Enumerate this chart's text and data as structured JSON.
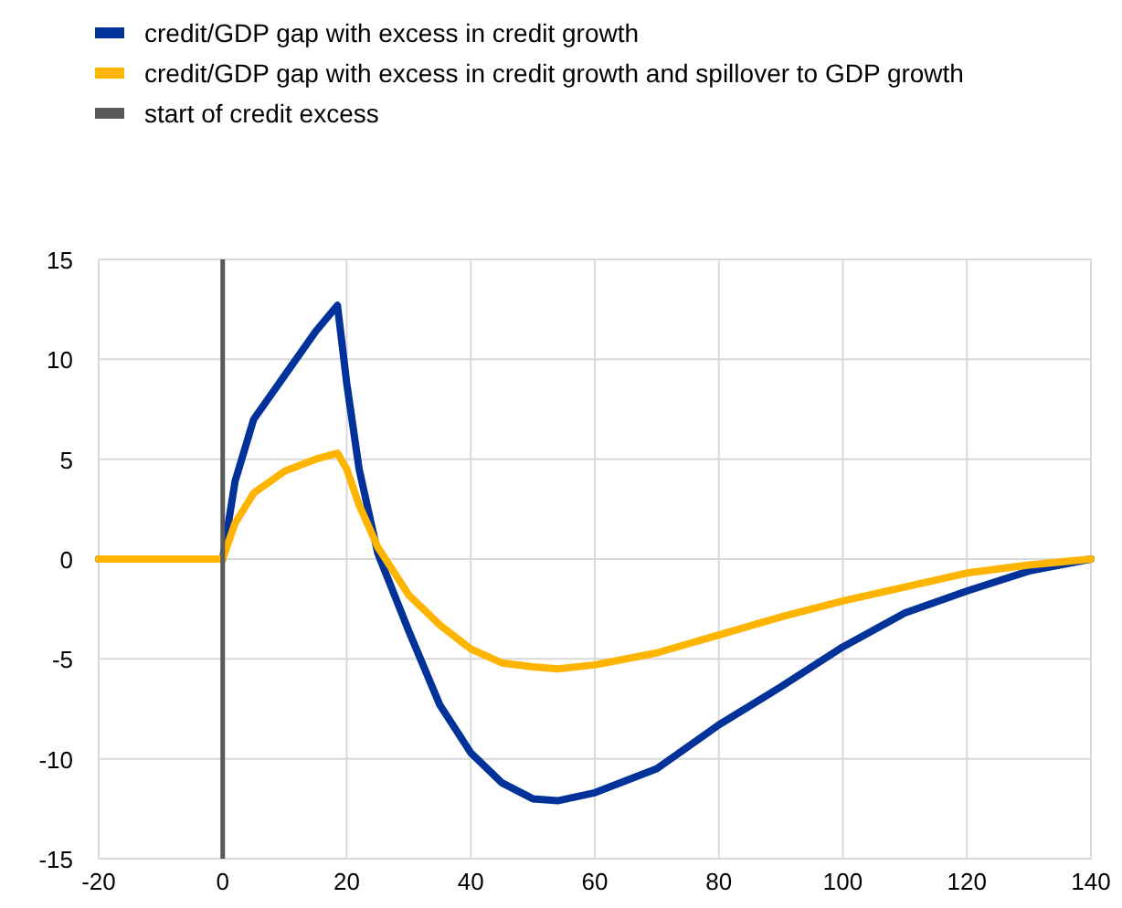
{
  "chart_data": {
    "type": "line",
    "legend": "top left",
    "grid": true,
    "xlim": [
      -20,
      140
    ],
    "xticks": [
      -20,
      0,
      20,
      40,
      60,
      80,
      100,
      120,
      140
    ],
    "ylim": [
      -15,
      15
    ],
    "yticks": [
      -15,
      -10,
      -5,
      0,
      5,
      10,
      15
    ],
    "x": [
      -20,
      -10,
      0,
      2,
      5,
      10,
      15,
      18.5,
      20,
      22,
      25,
      30,
      35,
      40,
      45,
      50,
      54,
      60,
      70,
      80,
      90,
      100,
      110,
      120,
      130,
      140
    ],
    "series": [
      {
        "name": "credit/GDP gap with excess in credit growth",
        "color": "#003299",
        "values": [
          0,
          0,
          0,
          3.9,
          7.0,
          9.2,
          11.4,
          12.7,
          8.8,
          4.5,
          0.3,
          -3.6,
          -7.3,
          -9.7,
          -11.2,
          -12,
          -12.1,
          -11.7,
          -10.5,
          -8.3,
          -6.4,
          -4.4,
          -2.7,
          -1.6,
          -0.6,
          0
        ]
      },
      {
        "name": "credit/GDP gap with excess in credit growth and spillover to GDP growth",
        "color": "#ffb400",
        "values": [
          0,
          0,
          0,
          1.8,
          3.3,
          4.4,
          5.0,
          5.3,
          4.5,
          2.7,
          0.6,
          -1.8,
          -3.3,
          -4.5,
          -5.2,
          -5.4,
          -5.5,
          -5.3,
          -4.7,
          -3.8,
          -2.9,
          -2.1,
          -1.4,
          -0.7,
          -0.3,
          0
        ]
      }
    ],
    "ref_lines": [
      {
        "axis": "x",
        "value": 0,
        "label": "start of credit excess",
        "color": "#595959"
      }
    ]
  }
}
